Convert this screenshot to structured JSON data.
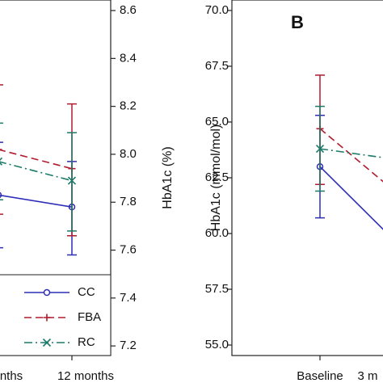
{
  "chart_data": [
    {
      "type": "line",
      "ylabel": "HbA1c (%)",
      "categories": [
        "nths",
        "12 months"
      ],
      "legend": "lower left",
      "ylim": [
        7.16,
        8.644
      ],
      "yticks": [
        7.2,
        7.4,
        7.6,
        7.8,
        {
          "value": 8,
          "label": "8.0"
        },
        8.2,
        8.4,
        8.6
      ],
      "series": [
        {
          "name": "CC",
          "color": "#2d2db8",
          "dash": "none",
          "marker": "circle",
          "values": [
            7.83,
            7.78
          ],
          "lower": [
            7.61,
            7.58
          ],
          "upper": [
            8.05,
            7.97
          ]
        },
        {
          "name": "FBA",
          "color": "#b01c2e",
          "dash": "9,5",
          "marker": "plus",
          "values": [
            8.02,
            7.94
          ],
          "lower": [
            7.75,
            7.66
          ],
          "upper": [
            8.29,
            8.21
          ]
        },
        {
          "name": "RC",
          "color": "#1c7a68",
          "dash": "10,4,2,4",
          "marker": "cross",
          "values": [
            7.97,
            7.89
          ],
          "lower": [
            7.81,
            7.68
          ],
          "upper": [
            8.13,
            8.09
          ]
        }
      ]
    },
    {
      "type": "line",
      "panel_label": "B",
      "ylabel": "HbA1c (mmol/mol)",
      "categories": [
        "Baseline",
        "3 m"
      ],
      "ylim": [
        54.53,
        70.47
      ],
      "yticks": [
        {
          "value": 55,
          "label": "55.0"
        },
        57.5,
        {
          "value": 60,
          "label": "60.0"
        },
        62.5,
        {
          "value": 65,
          "label": "65.0"
        },
        67.5,
        {
          "value": 70,
          "label": "70.0"
        }
      ],
      "series": [
        {
          "color": "#2d2db8",
          "dash": "none",
          "marker": "circle",
          "values": [
            63.0,
            59.8
          ],
          "lower": [
            60.7,
            null
          ],
          "upper": [
            65.3,
            null
          ]
        },
        {
          "color": "#b01c2e",
          "dash": "9,5",
          "marker": "plus",
          "values": [
            64.7,
            62.0
          ],
          "lower": [
            62.2,
            null
          ],
          "upper": [
            67.1,
            null
          ]
        },
        {
          "color": "#1c7a68",
          "dash": "10,4,2,4",
          "marker": "cross",
          "values": [
            63.8,
            63.35
          ],
          "lower": [
            61.9,
            null
          ],
          "upper": [
            65.7,
            null
          ]
        }
      ]
    }
  ]
}
